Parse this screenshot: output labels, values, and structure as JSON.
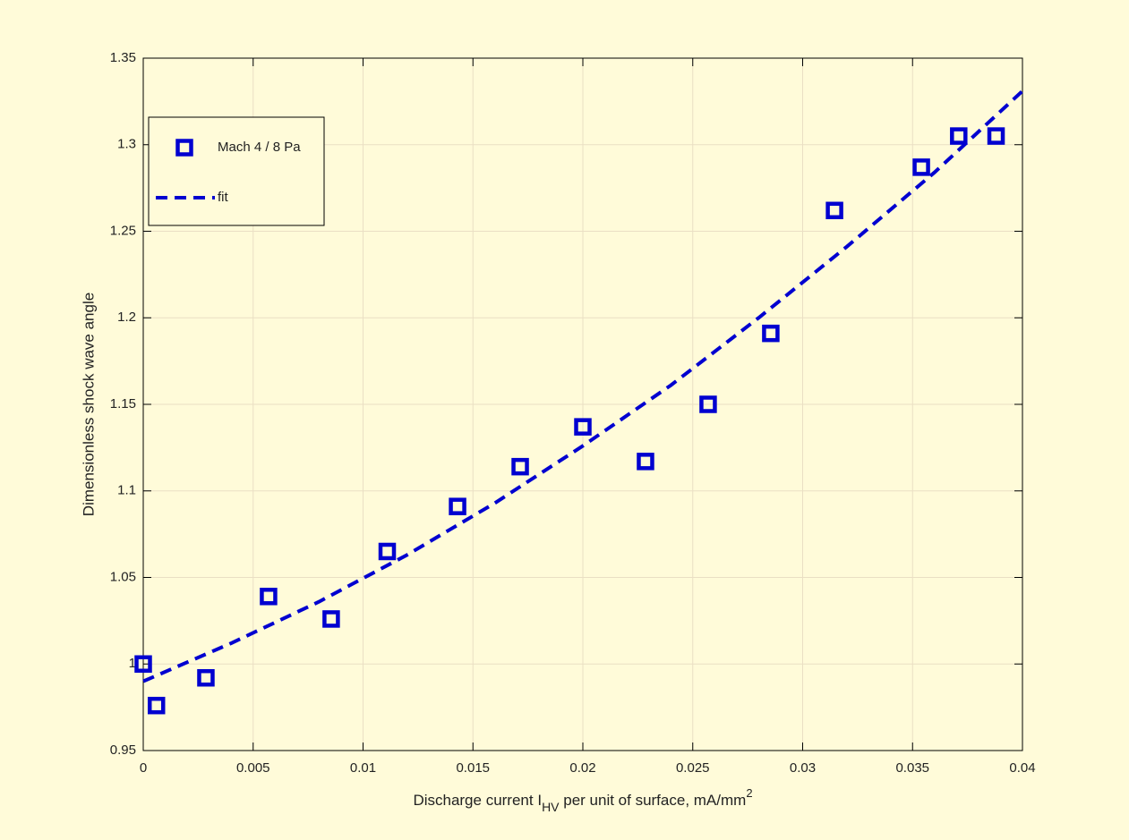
{
  "chart_data": {
    "type": "scatter",
    "xlabel": {
      "text": "Discharge current I",
      "subscript": "HV",
      "text_after": " per unit of surface, mA/mm",
      "superscript": "2"
    },
    "ylabel": "Dimensionless shock wave angle",
    "xlim": [
      0,
      0.04
    ],
    "ylim": [
      0.95,
      1.35
    ],
    "xticks": [
      0,
      0.005,
      0.01,
      0.015,
      0.02,
      0.025,
      0.03,
      0.035,
      0.04
    ],
    "yticks": [
      0.95,
      1,
      1.05,
      1.1,
      1.15,
      1.2,
      1.25,
      1.3,
      1.35
    ],
    "grid": true,
    "legend": "upper left",
    "series": [
      {
        "name": "Mach 4 / 8 Pa",
        "color": "#0000d0",
        "marker": "square",
        "x": [
          0,
          0.0006,
          0.00285,
          0.0057,
          0.00855,
          0.0111,
          0.0143,
          0.01715,
          0.02,
          0.02285,
          0.0257,
          0.02855,
          0.03145,
          0.0354,
          0.0371,
          0.0388
        ],
        "values": [
          1.0,
          0.976,
          0.992,
          1.039,
          1.026,
          1.065,
          1.091,
          1.114,
          1.137,
          1.117,
          1.15,
          1.191,
          1.262,
          1.287,
          1.305,
          1.305
        ]
      },
      {
        "name": "fit",
        "color": "#0000d0",
        "line": "dashed",
        "x": [
          0,
          0.004,
          0.008,
          0.012,
          0.016,
          0.02,
          0.024,
          0.028,
          0.032,
          0.036,
          0.04
        ],
        "values": [
          0.99,
          1.012,
          1.036,
          1.063,
          1.093,
          1.126,
          1.161,
          1.2,
          1.241,
          1.284,
          1.331
        ]
      }
    ]
  }
}
